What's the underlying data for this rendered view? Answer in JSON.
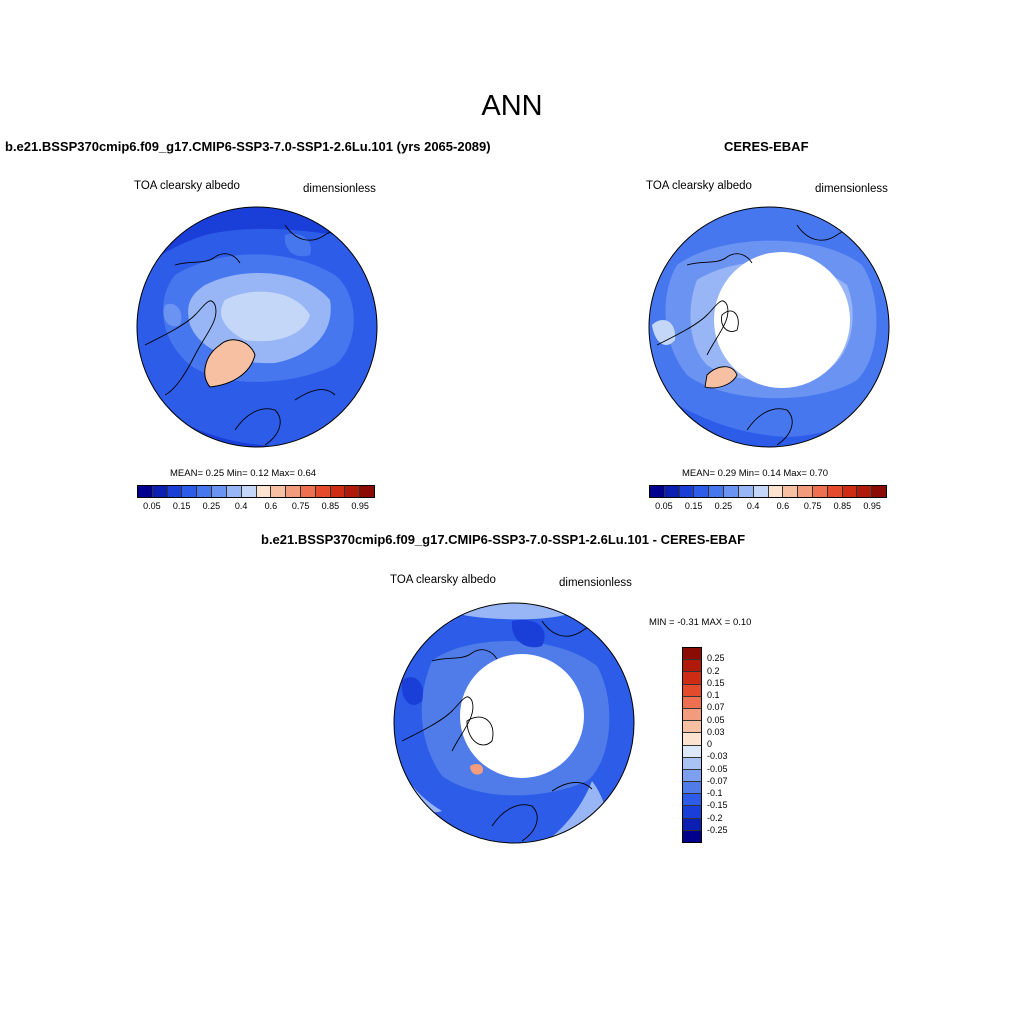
{
  "title": "ANN",
  "panels": [
    {
      "heading": "b.e21.BSSP370cmip6.f09_g17.CMIP6-SSP3-7.0-SSP1-2.6Lu.101 (yrs 2065-2089)",
      "variable": "TOA clearsky albedo",
      "units": "dimensionless",
      "stats": "MEAN=   0.25  Min=   0.12  Max=   0.64"
    },
    {
      "heading": "CERES-EBAF",
      "variable": "TOA clearsky albedo",
      "units": "dimensionless",
      "stats": "MEAN=   0.29  Min=   0.14  Max=   0.70"
    },
    {
      "heading": "b.e21.BSSP370cmip6.f09_g17.CMIP6-SSP3-7.0-SSP1-2.6Lu.101 - CERES-EBAF",
      "variable": "TOA clearsky albedo",
      "units": "dimensionless",
      "stats": "MIN =  -0.31 MAX =   0.10"
    }
  ],
  "colorbar_abs": {
    "tick_labels": [
      "0.05",
      "0.15",
      "0.25",
      "0.4",
      "0.6",
      "0.75",
      "0.85",
      "0.95"
    ],
    "colors": [
      "#00008c",
      "#0c1fb3",
      "#1a3fd9",
      "#2c5ce8",
      "#4677ef",
      "#6b93f2",
      "#98b6f5",
      "#c4d7f8",
      "#fbe3cf",
      "#f7c0a3",
      "#f39b7d",
      "#ee7050",
      "#e44a2c",
      "#cf2c14",
      "#b01a0a",
      "#8a0c04"
    ]
  },
  "colorbar_diff": {
    "tick_labels": [
      "0.25",
      "0.2",
      "0.15",
      "0.1",
      "0.07",
      "0.05",
      "0.03",
      "0",
      "-0.03",
      "-0.05",
      "-0.07",
      "-0.1",
      "-0.15",
      "-0.2",
      "-0.25"
    ],
    "colors": [
      "#8a0c04",
      "#b01a0a",
      "#cf2c14",
      "#e44a2c",
      "#ee7050",
      "#f39b7d",
      "#f7c0a3",
      "#fbe3cf",
      "#dde8fb",
      "#a9c3f5",
      "#7d9ff0",
      "#4f7ce9",
      "#2c5ce8",
      "#1a3fd9",
      "#0c1fb3",
      "#00008c"
    ]
  }
}
